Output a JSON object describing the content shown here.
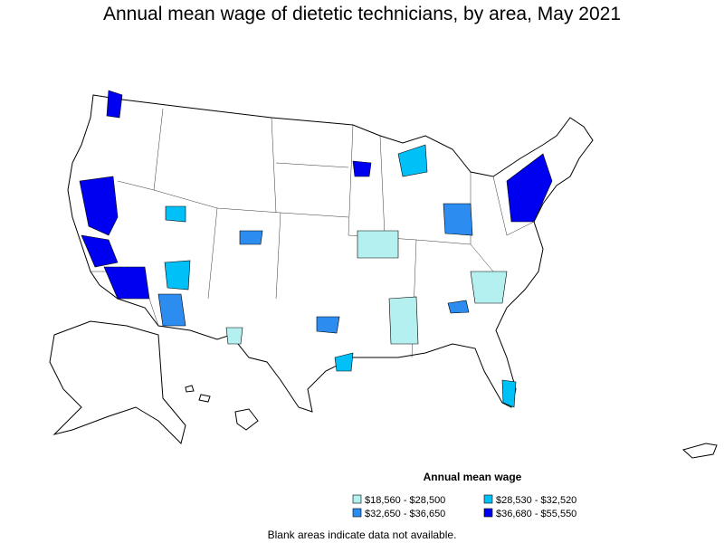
{
  "title": "Annual mean wage of dietetic technicians, by area, May 2021",
  "legend": {
    "title": "Annual mean wage",
    "items": [
      {
        "label": "$18,560 - $28,500",
        "color": "#b4f0f0"
      },
      {
        "label": "$28,530 - $32,520",
        "color": "#00c0f8"
      },
      {
        "label": "$32,650 - $36,650",
        "color": "#2c8cf0"
      },
      {
        "label": "$36,680 - $55,550",
        "color": "#0000f0"
      }
    ]
  },
  "note": "Blank areas indicate data not available."
}
